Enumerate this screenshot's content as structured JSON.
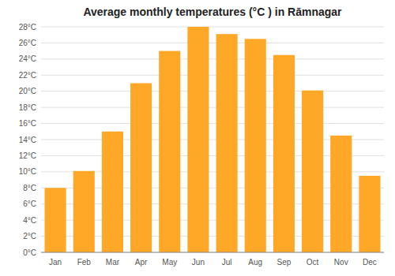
{
  "chart_data": {
    "type": "bar",
    "title": "Average monthly temperatures (°C ) in Rāmnagar",
    "categories": [
      "Jan",
      "Feb",
      "Mar",
      "Apr",
      "May",
      "Jun",
      "Jul",
      "Aug",
      "Sep",
      "Oct",
      "Nov",
      "Dec"
    ],
    "values": [
      8.0,
      10.1,
      15.0,
      21.0,
      25.0,
      28.0,
      27.1,
      26.5,
      24.5,
      20.1,
      14.5,
      9.5
    ],
    "color": "#FFA726",
    "ylim": [
      0,
      28
    ],
    "yticks": [
      {
        "value": 0,
        "label": "0°C"
      },
      {
        "value": 2,
        "label": "2°C"
      },
      {
        "value": 4,
        "label": "4°C"
      },
      {
        "value": 6,
        "label": "6°C"
      },
      {
        "value": 8,
        "label": "8°C"
      },
      {
        "value": 10,
        "label": "10°C"
      },
      {
        "value": 12,
        "label": "12°C"
      },
      {
        "value": 14,
        "label": "14°C"
      },
      {
        "value": 16,
        "label": "16°C"
      },
      {
        "value": 18,
        "label": "18°C"
      },
      {
        "value": 20,
        "label": "20°C"
      },
      {
        "value": 22,
        "label": "22°C"
      },
      {
        "value": 24,
        "label": "24°C"
      },
      {
        "value": 26,
        "label": "26°C"
      },
      {
        "value": 28,
        "label": "28°C"
      }
    ],
    "grid": true
  }
}
